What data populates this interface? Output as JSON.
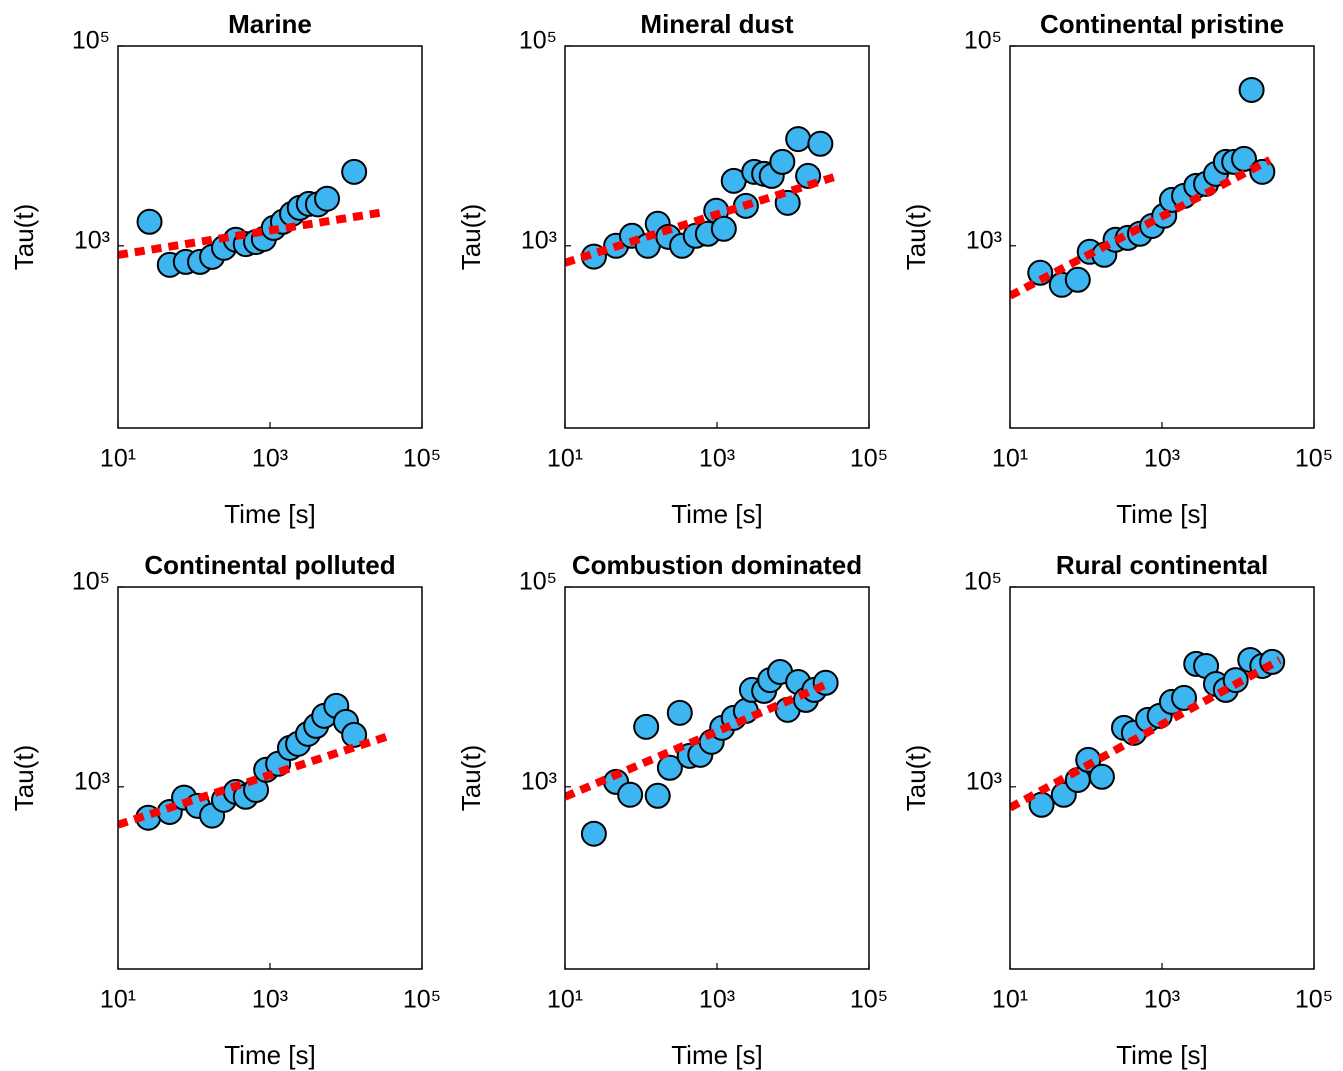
{
  "chart_data": [
    {
      "type": "scatter",
      "title": "Marine",
      "x_label": "Time [s]",
      "y_label": "Tau(t)",
      "log_x": true,
      "log_y": true,
      "xlim": [
        10,
        100000
      ],
      "ylim": [
        15,
        100000
      ],
      "xticks": [
        {
          "value": 10,
          "label": "10¹"
        },
        {
          "value": 1000,
          "label": "10³"
        },
        {
          "value": 100000,
          "label": "10⁵"
        }
      ],
      "yticks": [
        {
          "value": 1000,
          "label": "10³"
        },
        {
          "value": 100000,
          "label": "10⁵"
        }
      ],
      "series": [
        {
          "type": "scatter",
          "color": "#3db5f0",
          "x": [
            26,
            48,
            78,
            120,
            173,
            248,
            355,
            480,
            655,
            830,
            1120,
            1480,
            1950,
            2460,
            3240,
            4270,
            5630,
            12800
          ],
          "values": [
            1740,
            645,
            690,
            690,
            775,
            955,
            1150,
            1040,
            1090,
            1170,
            1510,
            1740,
            2090,
            2400,
            2630,
            2600,
            2960,
            5500
          ]
        },
        {
          "type": "line",
          "color": "#ff0000",
          "x": [
            10,
            28000
          ],
          "values": [
            810,
            2140
          ]
        }
      ]
    },
    {
      "type": "scatter",
      "title": "Mineral dust",
      "x_label": "Time [s]",
      "y_label": "Tau(t)",
      "log_x": true,
      "log_y": true,
      "xlim": [
        10,
        100000
      ],
      "ylim": [
        15,
        100000
      ],
      "xticks": [
        {
          "value": 10,
          "label": "10¹"
        },
        {
          "value": 1000,
          "label": "10³"
        },
        {
          "value": 100000,
          "label": "10⁵"
        }
      ],
      "yticks": [
        {
          "value": 1000,
          "label": "10³"
        },
        {
          "value": 100000,
          "label": "10⁵"
        }
      ],
      "series": [
        {
          "type": "scatter",
          "color": "#3db5f0",
          "x": [
            24,
            47,
            76,
            123,
            166,
            229,
            347,
            525,
            759,
            977,
            1230,
            1660,
            2400,
            3090,
            4170,
            5250,
            7240,
            8510,
            11700,
            15800,
            22900
          ],
          "values": [
            780,
            1000,
            1260,
            1000,
            1660,
            1230,
            1000,
            1260,
            1320,
            2240,
            1480,
            4470,
            2510,
            5500,
            5250,
            5010,
            6920,
            2690,
            11700,
            5010,
            10500
          ]
        },
        {
          "type": "line",
          "color": "#ff0000",
          "x": [
            10,
            38900
          ],
          "values": [
            676,
            5010
          ]
        }
      ]
    },
    {
      "type": "scatter",
      "title": "Continental pristine",
      "x_label": "Time [s]",
      "y_label": "Tau(t)",
      "log_x": true,
      "log_y": true,
      "xlim": [
        10,
        100000
      ],
      "ylim": [
        15,
        100000
      ],
      "xticks": [
        {
          "value": 10,
          "label": "10¹"
        },
        {
          "value": 1000,
          "label": "10³"
        },
        {
          "value": 100000,
          "label": "10⁵"
        }
      ],
      "yticks": [
        {
          "value": 1000,
          "label": "10³"
        },
        {
          "value": 100000,
          "label": "10⁵"
        }
      ],
      "series": [
        {
          "type": "scatter",
          "color": "#3db5f0",
          "x": [
            25,
            48,
            78,
            112,
            174,
            245,
            355,
            513,
            741,
            1070,
            1350,
            1950,
            2820,
            3800,
            5130,
            6920,
            8910,
            12000,
            15100,
            20900
          ],
          "values": [
            537,
            407,
            457,
            871,
            813,
            1150,
            1200,
            1320,
            1580,
            2000,
            2880,
            3160,
            3980,
            4170,
            5250,
            6920,
            6920,
            7410,
            36300,
            5500
          ]
        },
        {
          "type": "line",
          "color": "#ff0000",
          "x": [
            10,
            26300
          ],
          "values": [
            316,
            7240
          ]
        }
      ]
    },
    {
      "type": "scatter",
      "title": "Continental polluted",
      "x_label": "Time [s]",
      "y_label": "Tau(t)",
      "log_x": true,
      "log_y": true,
      "xlim": [
        10,
        100000
      ],
      "ylim": [
        15,
        100000
      ],
      "xticks": [
        {
          "value": 10,
          "label": "10¹"
        },
        {
          "value": 1000,
          "label": "10³"
        },
        {
          "value": 100000,
          "label": "10⁵"
        }
      ],
      "yticks": [
        {
          "value": 1000,
          "label": "10³"
        },
        {
          "value": 100000,
          "label": "10⁵"
        }
      ],
      "series": [
        {
          "type": "scatter",
          "color": "#3db5f0",
          "x": [
            25,
            48,
            74,
            112,
            173,
            248,
            355,
            480,
            655,
            890,
            1280,
            1830,
            2340,
            3160,
            4050,
            5170,
            7450,
            10000,
            12800
          ],
          "values": [
            490,
            560,
            780,
            645,
            515,
            740,
            890,
            795,
            930,
            1480,
            1700,
            2450,
            2690,
            3390,
            4070,
            5130,
            6460,
            4470,
            3310
          ]
        },
        {
          "type": "line",
          "color": "#ff0000",
          "x": [
            10,
            40700
          ],
          "values": [
            417,
            3310
          ]
        }
      ]
    },
    {
      "type": "scatter",
      "title": "Combustion dominated",
      "x_label": "Time [s]",
      "y_label": "Tau(t)",
      "log_x": true,
      "log_y": true,
      "xlim": [
        10,
        100000
      ],
      "ylim": [
        15,
        100000
      ],
      "xticks": [
        {
          "value": 10,
          "label": "10¹"
        },
        {
          "value": 1000,
          "label": "10³"
        },
        {
          "value": 100000,
          "label": "10⁵"
        }
      ],
      "yticks": [
        {
          "value": 1000,
          "label": "10³"
        },
        {
          "value": 100000,
          "label": "10⁵"
        }
      ],
      "series": [
        {
          "type": "scatter",
          "color": "#3db5f0",
          "x": [
            24,
            47,
            72,
            117,
            166,
            240,
            324,
            437,
            603,
            851,
            1170,
            1660,
            2400,
            2880,
            4170,
            5010,
            6760,
            8510,
            11700,
            14800,
            19100,
            26900
          ],
          "values": [
            339,
            1120,
            832,
            3980,
            813,
            1550,
            5500,
            2040,
            2090,
            2820,
            3890,
            4900,
            5750,
            9330,
            9120,
            11700,
            14100,
            5890,
            11200,
            7410,
            9330,
            11000
          ]
        },
        {
          "type": "line",
          "color": "#ff0000",
          "x": [
            10,
            30900
          ],
          "values": [
            794,
            11000
          ]
        }
      ]
    },
    {
      "type": "scatter",
      "title": "Rural continental",
      "x_label": "Time [s]",
      "y_label": "Tau(t)",
      "log_x": true,
      "log_y": true,
      "xlim": [
        10,
        100000
      ],
      "ylim": [
        15,
        100000
      ],
      "xticks": [
        {
          "value": 10,
          "label": "10¹"
        },
        {
          "value": 1000,
          "label": "10³"
        },
        {
          "value": 100000,
          "label": "10⁵"
        }
      ],
      "yticks": [
        {
          "value": 1000,
          "label": "10³"
        },
        {
          "value": 100000,
          "label": "10⁵"
        }
      ],
      "series": [
        {
          "type": "scatter",
          "color": "#3db5f0",
          "x": [
            26,
            51,
            78,
            107,
            162,
            316,
            427,
            655,
            933,
            1350,
            1950,
            2820,
            3800,
            5130,
            6920,
            9330,
            14500,
            20900,
            28200
          ],
          "values": [
            661,
            832,
            1170,
            1860,
            1260,
            3890,
            3470,
            4680,
            5130,
            7080,
            7760,
            17000,
            16200,
            10700,
            9330,
            11700,
            18600,
            16200,
            17800
          ]
        },
        {
          "type": "line",
          "color": "#ff0000",
          "x": [
            10,
            35500
          ],
          "values": [
            617,
            18600
          ]
        }
      ]
    }
  ]
}
